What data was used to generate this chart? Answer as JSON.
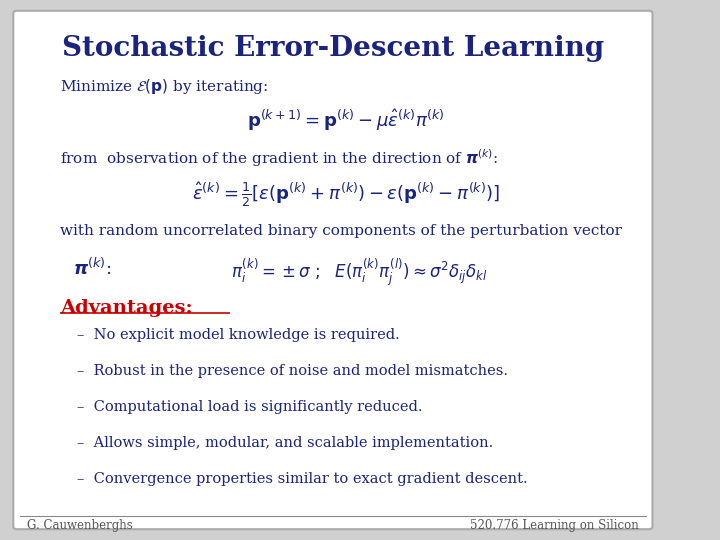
{
  "title": "Stochastic Error-Descent Learning",
  "title_color": "#1a237e",
  "title_fontsize": 20,
  "bg_color": "#d0d0d0",
  "slide_bg": "#ffffff",
  "border_color": "#aaaaaa",
  "body_color": "#1a237e",
  "advantages_color": "#cc0000",
  "footer_color": "#555555",
  "footer_left": "G. Cauwenberghs",
  "footer_right": "520.776 Learning on Silicon",
  "advantages": [
    "No explicit model knowledge is required.",
    "Robust in the presence of noise and model mismatches.",
    "Computational load is significantly reduced.",
    "Allows simple, modular, and scalable implementation.",
    "Convergence properties similar to exact gradient descent."
  ]
}
